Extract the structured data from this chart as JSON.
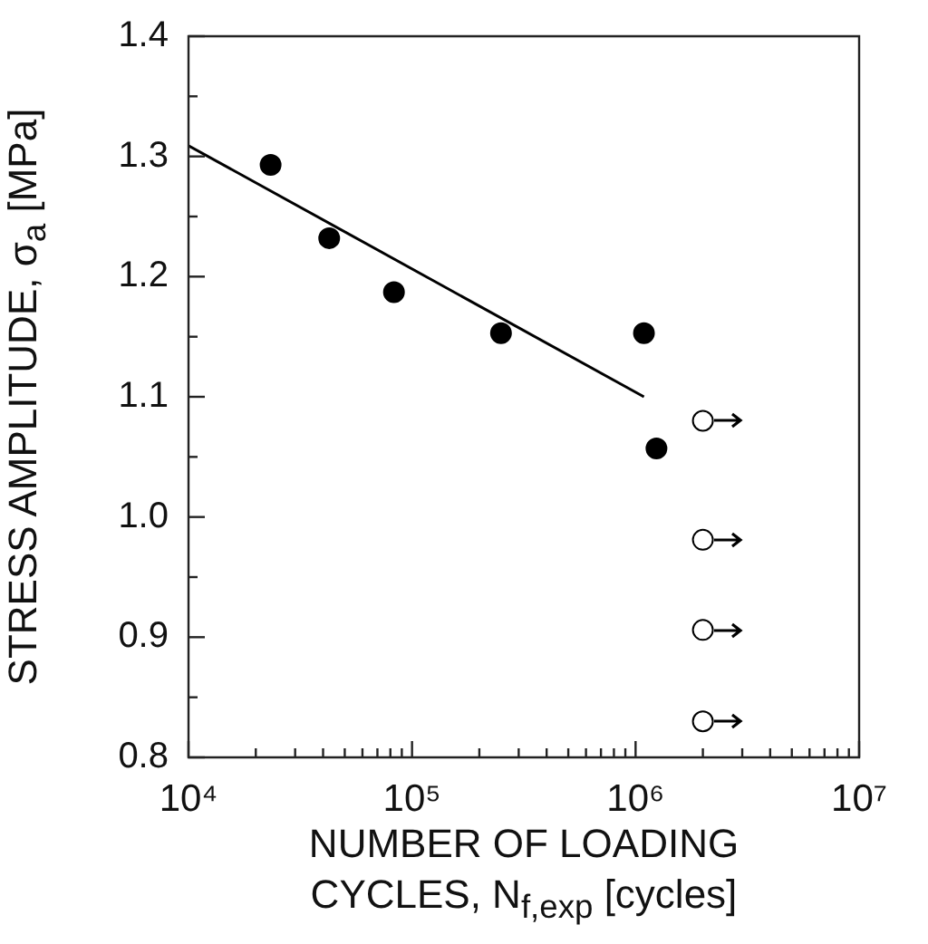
{
  "chart_data": {
    "type": "scatter",
    "xlabel": "NUMBER OF LOADING CYCLES, N$_{f,exp}$ [cycles]",
    "ylabel": "STRESS AMPLITUDE, σ$_{a}$ [MPa]",
    "log": "x",
    "xlim": [
      10000,
      10000000
    ],
    "ylim": [
      0.8,
      1.4
    ],
    "xticks": [
      {
        "value": 10000,
        "label": "10⁴"
      },
      {
        "value": 20000,
        "label": null
      },
      {
        "value": 30000,
        "label": null
      },
      {
        "value": 40000,
        "label": null
      },
      {
        "value": 50000,
        "label": null
      },
      {
        "value": 60000,
        "label": null
      },
      {
        "value": 70000,
        "label": null
      },
      {
        "value": 80000,
        "label": null
      },
      {
        "value": 90000,
        "label": null
      },
      {
        "value": 100000,
        "label": "10⁵"
      },
      {
        "value": 200000,
        "label": null
      },
      {
        "value": 300000,
        "label": null
      },
      {
        "value": 400000,
        "label": null
      },
      {
        "value": 500000,
        "label": null
      },
      {
        "value": 600000,
        "label": null
      },
      {
        "value": 700000,
        "label": null
      },
      {
        "value": 800000,
        "label": null
      },
      {
        "value": 900000,
        "label": null
      },
      {
        "value": 1000000,
        "label": "10⁶"
      },
      {
        "value": 2000000,
        "label": null
      },
      {
        "value": 3000000,
        "label": null
      },
      {
        "value": 4000000,
        "label": null
      },
      {
        "value": 5000000,
        "label": null
      },
      {
        "value": 6000000,
        "label": null
      },
      {
        "value": 7000000,
        "label": null
      },
      {
        "value": 8000000,
        "label": null
      },
      {
        "value": 9000000,
        "label": null
      },
      {
        "value": 10000000,
        "label": "10⁷"
      }
    ],
    "yticks": [
      0.8,
      {
        "value": 0.85,
        "label": null
      },
      0.9,
      {
        "value": 0.95,
        "label": null
      },
      {
        "value": 1.0,
        "label": "1.0"
      },
      {
        "value": 1.05,
        "label": null
      },
      1.1,
      {
        "value": 1.15,
        "label": null
      },
      1.2,
      {
        "value": 1.25,
        "label": null
      },
      1.3,
      {
        "value": 1.35,
        "label": null
      },
      1.4
    ],
    "grid": false,
    "legend": false,
    "series": [
      {
        "color": "#000000",
        "marker": "circle",
        "x": [
          23300,
          42600,
          83000,
          250000,
          1090000,
          1240000
        ],
        "values": [
          1.293,
          1.232,
          1.187,
          1.153,
          1.153,
          1.057
        ]
      },
      {
        "color": "#ffffff",
        "marker": "circle",
        "x": [
          2000000,
          2000000,
          2000000,
          2000000
        ],
        "values": [
          1.08,
          0.981,
          0.906,
          0.83
        ]
      },
      {
        "type": "line",
        "color": "#000000",
        "marker": "none",
        "line_style": "solid",
        "x": [
          10000,
          1090000
        ],
        "values": [
          1.309,
          1.1
        ]
      }
    ]
  }
}
